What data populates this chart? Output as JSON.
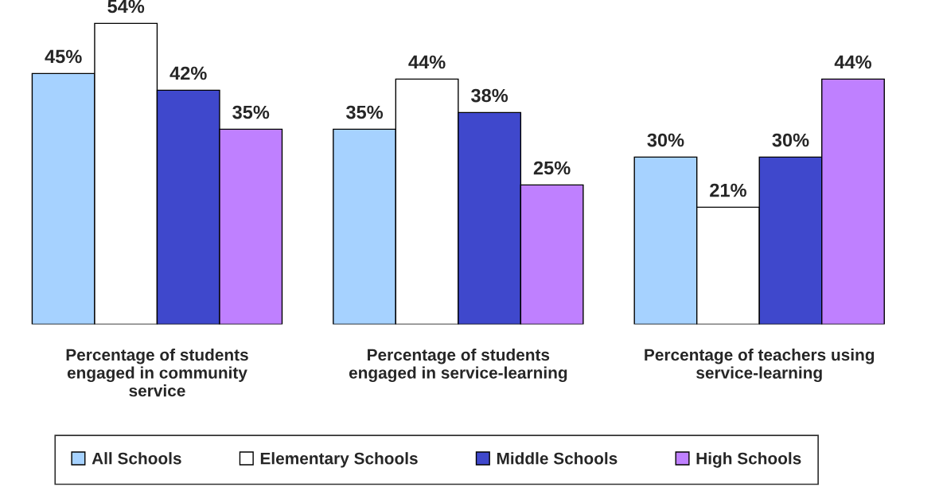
{
  "chart_data": {
    "type": "bar",
    "categories": [
      "Percentage of students\nengaged in community\nservice",
      "Percentage of students\nengaged in service-learning",
      "Percentage of teachers using\nservice-learning"
    ],
    "series": [
      {
        "name": "All Schools",
        "color": "#a6d2ff",
        "values": [
          45,
          35,
          30
        ],
        "value_labels": [
          "45%",
          "35%",
          "30%"
        ]
      },
      {
        "name": "Elementary Schools",
        "color": "#ffffff",
        "values": [
          54,
          44,
          21
        ],
        "value_labels": [
          "54%",
          "44%",
          "21%"
        ]
      },
      {
        "name": "Middle Schools",
        "color": "#3f48cc",
        "values": [
          42,
          38,
          30
        ],
        "value_labels": [
          "42%",
          "38%",
          "30%"
        ]
      },
      {
        "name": "High Schools",
        "color": "#bf80ff",
        "values": [
          35,
          25,
          44
        ],
        "value_labels": [
          "35%",
          "25%",
          "44%"
        ]
      }
    ],
    "legend": "bottom",
    "grid": false,
    "tick_labels": "x"
  }
}
